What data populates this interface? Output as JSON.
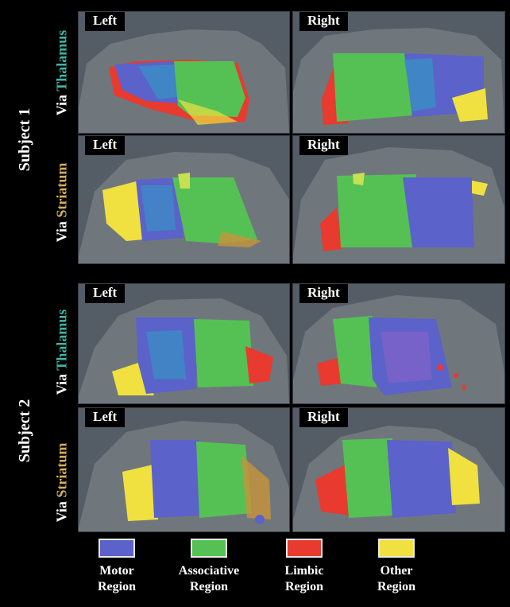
{
  "subjects": [
    {
      "label": "Subject 1"
    },
    {
      "label": "Subject 2"
    }
  ],
  "rows": [
    {
      "via": "Via",
      "pathway": "Thalamus",
      "left": "Left",
      "right": "Right"
    },
    {
      "via": "Via",
      "pathway": "Striatum",
      "left": "Left",
      "right": "Right"
    },
    {
      "via": "Via",
      "pathway": "Thalamus",
      "left": "Left",
      "right": "Right"
    },
    {
      "via": "Via",
      "pathway": "Striatum",
      "left": "Left",
      "right": "Right"
    }
  ],
  "legend": [
    {
      "line1": "Motor",
      "line2": "Region",
      "color": "#5b62c9"
    },
    {
      "line1": "Associative",
      "line2": "Region",
      "color": "#55c155"
    },
    {
      "line1": "Limbic",
      "line2": "Region",
      "color": "#e83a2e"
    },
    {
      "line1": "Other",
      "line2": "Region",
      "color": "#f0e040"
    }
  ],
  "colors": {
    "background": "#000000",
    "panel": "#545c66",
    "thalamus_text": "#3fb7a6",
    "striatum_text": "#d6b05a"
  }
}
